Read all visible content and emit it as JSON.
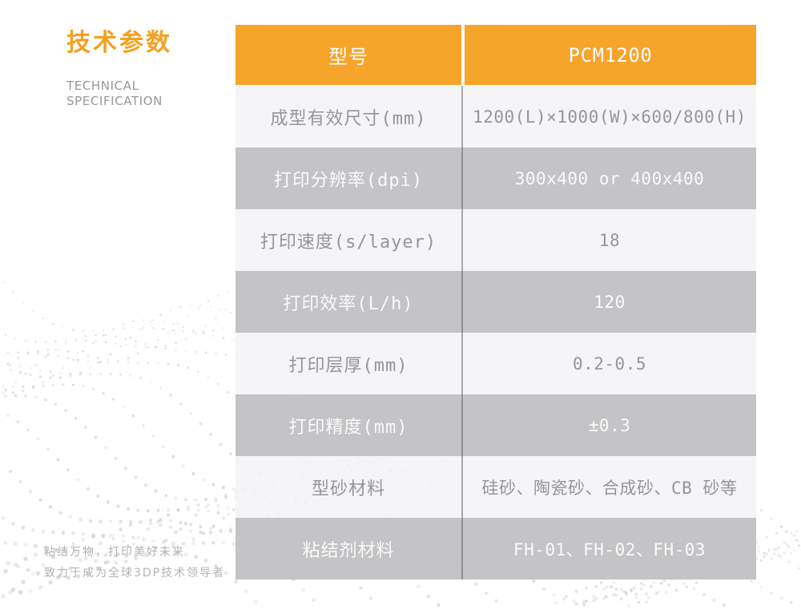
{
  "header": {
    "title_zh": "技术参数",
    "subtitle_line1": "TECHNICAL",
    "subtitle_line2": "SPECIFICATION"
  },
  "table": {
    "header": {
      "param": "型号",
      "value": "PCM1200"
    },
    "rows": [
      {
        "param": "成型有效尺寸(mm)",
        "value": "1200(L)×1000(W)×600/800(H)"
      },
      {
        "param": "打印分辨率(dpi)",
        "value": "300x400 or 400x400"
      },
      {
        "param": "打印速度(s/layer)",
        "value": "18"
      },
      {
        "param": "打印效率(L/h)",
        "value": "120"
      },
      {
        "param": "打印层厚(mm)",
        "value": "0.2-0.5"
      },
      {
        "param": "打印精度(mm)",
        "value": "±0.3"
      },
      {
        "param": "型砂材料",
        "value": "硅砂、陶瓷砂、合成砂、CB 砂等"
      },
      {
        "param": "粘结剂材料",
        "value": "FH-01、FH-02、FH-03"
      }
    ]
  },
  "footer": {
    "line1": "粘结万物，打印美好未来",
    "line2": "致力于成为全球3DP技术领导者"
  },
  "colors": {
    "accent_orange": "#F7A42B",
    "row_gray": "#C4C3C5",
    "row_light": "#F6F6F7",
    "divider_line": "#9B9A9E",
    "label_text_gray": "#96959A",
    "value_text_white": "#FAFAFB",
    "pattern_dot_gray": "#C9C9CD"
  }
}
